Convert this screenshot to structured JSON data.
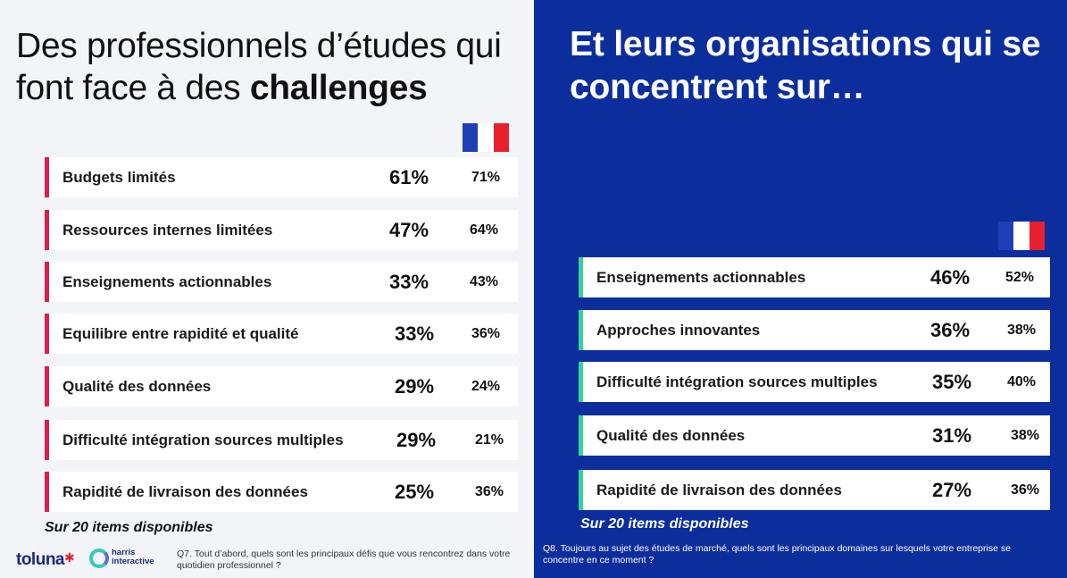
{
  "left": {
    "title_plain": "Des professionnels d’études qui font face à des ",
    "title_bold": "challenges",
    "rows": [
      {
        "label": "Budgets limités",
        "pct_main": "61%",
        "pct_fr": "71%"
      },
      {
        "label": "Ressources internes limitées",
        "pct_main": "47%",
        "pct_fr": "64%"
      },
      {
        "label": "Enseignements actionnables",
        "pct_main": "33%",
        "pct_fr": "43%"
      },
      {
        "label": "Equilibre entre rapidité et qualité",
        "pct_main": "33%",
        "pct_fr": "36%"
      },
      {
        "label": "Qualité des données",
        "pct_main": "29%",
        "pct_fr": "24%"
      },
      {
        "label": "Difficulté intégration sources multiples",
        "pct_main": "29%",
        "pct_fr": "21%"
      },
      {
        "label": "Rapidité de livraison des données",
        "pct_main": "25%",
        "pct_fr": "36%"
      }
    ],
    "note": "Sur 20 items disponibles",
    "question": "Q7. Tout d’abord, quels sont les principaux défis que vous rencontrez dans votre quotidien professionnel ?"
  },
  "right": {
    "title": "Et leurs organisations qui se concentrent sur…",
    "rows": [
      {
        "label": "Enseignements actionnables",
        "pct_main": "46%",
        "pct_fr": "52%"
      },
      {
        "label": "Approches innovantes",
        "pct_main": "36%",
        "pct_fr": "38%"
      },
      {
        "label": "Difficulté intégration sources multiples",
        "pct_main": "35%",
        "pct_fr": "40%"
      },
      {
        "label": "Qualité des données",
        "pct_main": "31%",
        "pct_fr": "38%"
      },
      {
        "label": "Rapidité de livraison des données",
        "pct_main": "27%",
        "pct_fr": "36%"
      }
    ],
    "note": "Sur 20 items disponibles",
    "question": "Q8. Toujours au sujet des études de marché, quels sont les principaux domaines sur lesquels votre entreprise se concentre en ce moment ?"
  },
  "logos": {
    "toluna": "toluna",
    "harris_line1": "harris",
    "harris_line2": "interactive"
  },
  "colors": {
    "right_background": "#0c2e9c",
    "left_accent": "#d81e4f",
    "right_accent": "#35d49a",
    "flag_blue": "#1f3fb8",
    "flag_red": "#e8202c"
  },
  "icons": [
    "france-flag-icon",
    "toluna-logo",
    "harris-interactive-logo"
  ]
}
